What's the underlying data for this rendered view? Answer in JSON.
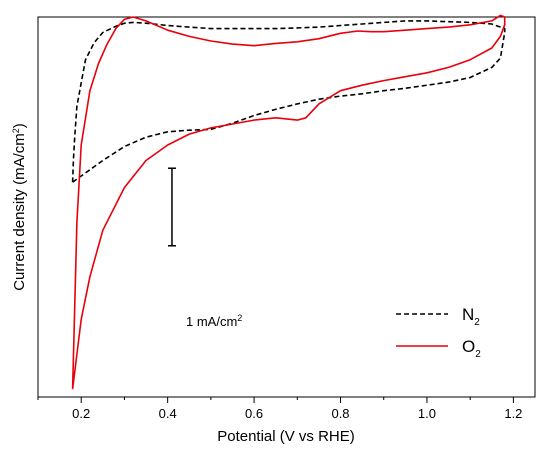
{
  "chart_data": {
    "type": "line",
    "title": "",
    "xlabel": "Potential (V vs RHE)",
    "ylabel": {
      "text": "Current density (mA/cm",
      "sup": "2",
      "close": ")"
    },
    "xlim": [
      0.1,
      1.25
    ],
    "ylim": [
      -2.75,
      2.15
    ],
    "y_tick_labels": "none",
    "x_ticks_major": [
      {
        "v": 0.2,
        "label": "0.2"
      },
      {
        "v": 0.4,
        "label": "0.4"
      },
      {
        "v": 0.6,
        "label": "0.6"
      },
      {
        "v": 0.8,
        "label": "0.8"
      },
      {
        "v": 1.0,
        "label": "1.0"
      },
      {
        "v": 1.2,
        "label": "1.2"
      }
    ],
    "x_ticks_minor": [
      0.1,
      0.3,
      0.5,
      0.7,
      0.9,
      1.1
    ],
    "scale_bar": {
      "text": "1 mA/cm",
      "sup": "2",
      "x": 0.41,
      "y_from": -0.8,
      "y_to": 0.2
    },
    "legend": {
      "position": "bottom-right"
    },
    "series": [
      {
        "name": "N",
        "name_sub": "2",
        "color": "#000000",
        "style": "dashed",
        "points": [
          [
            0.18,
            0.02
          ],
          [
            0.2,
            0.1
          ],
          [
            0.25,
            0.3
          ],
          [
            0.3,
            0.48
          ],
          [
            0.35,
            0.6
          ],
          [
            0.4,
            0.67
          ],
          [
            0.45,
            0.69
          ],
          [
            0.5,
            0.7
          ],
          [
            0.55,
            0.78
          ],
          [
            0.6,
            0.88
          ],
          [
            0.65,
            0.96
          ],
          [
            0.7,
            1.03
          ],
          [
            0.75,
            1.09
          ],
          [
            0.8,
            1.13
          ],
          [
            0.85,
            1.16
          ],
          [
            0.9,
            1.2
          ],
          [
            0.95,
            1.23
          ],
          [
            1.0,
            1.27
          ],
          [
            1.05,
            1.31
          ],
          [
            1.1,
            1.37
          ],
          [
            1.15,
            1.5
          ],
          [
            1.17,
            1.62
          ],
          [
            1.18,
            1.95
          ],
          [
            1.18,
            2.0
          ],
          [
            1.15,
            2.06
          ],
          [
            1.1,
            2.08
          ],
          [
            1.05,
            2.09
          ],
          [
            1.0,
            2.1
          ],
          [
            0.95,
            2.1
          ],
          [
            0.9,
            2.08
          ],
          [
            0.85,
            2.06
          ],
          [
            0.8,
            2.04
          ],
          [
            0.75,
            2.02
          ],
          [
            0.7,
            2.01
          ],
          [
            0.65,
            2.0
          ],
          [
            0.6,
            2.0
          ],
          [
            0.55,
            2.0
          ],
          [
            0.5,
            2.0
          ],
          [
            0.45,
            2.02
          ],
          [
            0.4,
            2.04
          ],
          [
            0.35,
            2.07
          ],
          [
            0.32,
            2.08
          ],
          [
            0.3,
            2.07
          ],
          [
            0.28,
            2.03
          ],
          [
            0.25,
            1.95
          ],
          [
            0.23,
            1.82
          ],
          [
            0.21,
            1.6
          ],
          [
            0.2,
            1.3
          ],
          [
            0.19,
            1.0
          ],
          [
            0.185,
            0.6
          ],
          [
            0.182,
            0.3
          ],
          [
            0.18,
            0.02
          ]
        ]
      },
      {
        "name": "O",
        "name_sub": "2",
        "color": "#e8000b",
        "style": "solid",
        "points": [
          [
            0.18,
            -2.65
          ],
          [
            0.19,
            -2.2
          ],
          [
            0.2,
            -1.75
          ],
          [
            0.22,
            -1.2
          ],
          [
            0.25,
            -0.6
          ],
          [
            0.3,
            -0.05
          ],
          [
            0.35,
            0.3
          ],
          [
            0.4,
            0.5
          ],
          [
            0.45,
            0.64
          ],
          [
            0.5,
            0.72
          ],
          [
            0.55,
            0.77
          ],
          [
            0.6,
            0.82
          ],
          [
            0.65,
            0.85
          ],
          [
            0.7,
            0.82
          ],
          [
            0.72,
            0.85
          ],
          [
            0.75,
            1.03
          ],
          [
            0.8,
            1.2
          ],
          [
            0.85,
            1.27
          ],
          [
            0.9,
            1.33
          ],
          [
            0.95,
            1.38
          ],
          [
            1.0,
            1.43
          ],
          [
            1.05,
            1.5
          ],
          [
            1.1,
            1.6
          ],
          [
            1.15,
            1.75
          ],
          [
            1.17,
            1.9
          ],
          [
            1.18,
            2.05
          ],
          [
            1.18,
            2.15
          ],
          [
            1.17,
            2.17
          ],
          [
            1.15,
            2.1
          ],
          [
            1.1,
            2.05
          ],
          [
            1.05,
            2.02
          ],
          [
            1.0,
            2.0
          ],
          [
            0.95,
            1.98
          ],
          [
            0.9,
            1.96
          ],
          [
            0.87,
            1.96
          ],
          [
            0.84,
            1.97
          ],
          [
            0.8,
            1.94
          ],
          [
            0.75,
            1.87
          ],
          [
            0.7,
            1.83
          ],
          [
            0.65,
            1.81
          ],
          [
            0.6,
            1.78
          ],
          [
            0.55,
            1.8
          ],
          [
            0.5,
            1.84
          ],
          [
            0.45,
            1.9
          ],
          [
            0.4,
            1.98
          ],
          [
            0.35,
            2.1
          ],
          [
            0.32,
            2.15
          ],
          [
            0.3,
            2.12
          ],
          [
            0.28,
            2.0
          ],
          [
            0.26,
            1.8
          ],
          [
            0.24,
            1.55
          ],
          [
            0.22,
            1.2
          ],
          [
            0.2,
            0.5
          ],
          [
            0.19,
            -0.5
          ],
          [
            0.185,
            -1.6
          ],
          [
            0.18,
            -2.65
          ]
        ]
      }
    ]
  }
}
